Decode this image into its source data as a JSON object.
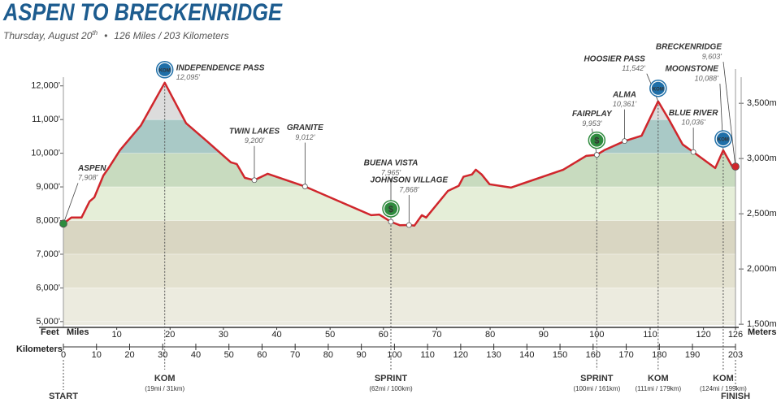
{
  "chart_data": {
    "type": "elevation-profile",
    "title": "ASPEN TO BRECKENRIDGE",
    "subtitle_date": "Thursday, August 20",
    "subtitle_date_suffix": "th",
    "subtitle_distance": "126 Miles / 203 Kilometers",
    "y_label": "Feet",
    "x_label": "Miles",
    "x2_label": "Kilometers",
    "y2_label": "Meters",
    "series": [
      {
        "name": "Elevation",
        "color": "#d0262c",
        "x": [
          0,
          1.5,
          3.4,
          4.9,
          5.8,
          7.5,
          8.4,
          10.6,
          14.5,
          19,
          23,
          27.1,
          31.4,
          32.5,
          34,
          35.8,
          38.3,
          45.3,
          57.7,
          59.2,
          61.4,
          63.1,
          64.8,
          65.8,
          67.2,
          68,
          72.1,
          74.1,
          75,
          76.6,
          77.3,
          78.4,
          79.9,
          83.9,
          93.7,
          98,
          100,
          101.4,
          105.2,
          108.4,
          111.5,
          113.6,
          116.1,
          118.1,
          122.2,
          123.7,
          125.4,
          126
        ],
        "values": [
          7908,
          8090,
          8090,
          8570,
          8690,
          9340,
          9540,
          10090,
          10820,
          12095,
          10890,
          10330,
          9730,
          9680,
          9270,
          9200,
          9390,
          9012,
          8160,
          8180,
          7965,
          7860,
          7868,
          7850,
          8160,
          8090,
          8880,
          9030,
          9300,
          9370,
          9510,
          9370,
          9080,
          8980,
          9510,
          9920,
          9953,
          10090,
          10361,
          10520,
          11542,
          10980,
          10260,
          10036,
          9560,
          10088,
          9600,
          9603
        ]
      }
    ],
    "xlim": [
      0,
      126
    ],
    "xticks": [
      10,
      20,
      30,
      40,
      50,
      60,
      70,
      80,
      90,
      100,
      110,
      120,
      126
    ],
    "x2lim": [
      0,
      203
    ],
    "x2ticks": [
      0,
      10,
      20,
      30,
      40,
      50,
      60,
      70,
      80,
      90,
      100,
      110,
      120,
      130,
      140,
      150,
      160,
      170,
      180,
      190,
      203
    ],
    "ylim": [
      4900,
      12500
    ],
    "yticks": [
      {
        "value": 5000,
        "label": "5,000'"
      },
      {
        "value": 6000,
        "label": "6,000'"
      },
      {
        "value": 7000,
        "label": "7,000'"
      },
      {
        "value": 8000,
        "label": "8,000'"
      },
      {
        "value": 9000,
        "label": "9,000'"
      },
      {
        "value": 10000,
        "label": "10,000'"
      },
      {
        "value": 11000,
        "label": "11,000'"
      },
      {
        "value": 12000,
        "label": "12,000'"
      }
    ],
    "y2lim": [
      1493.5,
      3810
    ],
    "y2ticks": [
      {
        "value": 1500,
        "label": "1,500m"
      },
      {
        "value": 2000,
        "label": "2,000m"
      },
      {
        "value": 2500,
        "label": "2,500m"
      },
      {
        "value": 3000,
        "label": "3,000m"
      },
      {
        "value": 3500,
        "label": "3,500m"
      }
    ],
    "band_colors": [
      "#ebeadf",
      "#ecebdf",
      "#e3e1cf",
      "#d9d6c2",
      "#e5eed8",
      "#c8dbbf",
      "#a9c9c6",
      "#dcdcdc",
      "#ebebeb"
    ],
    "annotations": [
      {
        "text": "ASPEN",
        "elevation": "7,908'",
        "x": 0,
        "y": 7908,
        "color": "#1d5c8f"
      },
      {
        "text": "INDEPENDENCE PASS",
        "elevation": "12,095'",
        "x": 19,
        "y": 12095,
        "color": "#1d5c8f"
      },
      {
        "text": "TWIN LAKES",
        "elevation": "9,200'",
        "x": 35.8,
        "y": 9200,
        "color": "#444444"
      },
      {
        "text": "GRANITE",
        "elevation": "9,012'",
        "x": 45.3,
        "y": 9012,
        "color": "#444444"
      },
      {
        "text": "BUENA VISTA",
        "elevation": "7,965'",
        "x": 61.4,
        "y": 7965,
        "color": "#444444"
      },
      {
        "text": "JOHNSON VILLAGE",
        "elevation": "7,868'",
        "x": 64.8,
        "y": 7868,
        "color": "#444444"
      },
      {
        "text": "FAIRPLAY",
        "elevation": "9,953'",
        "x": 100,
        "y": 9953,
        "color": "#444444"
      },
      {
        "text": "ALMA",
        "elevation": "10,361'",
        "x": 105.2,
        "y": 10361,
        "color": "#444444"
      },
      {
        "text": "HOOSIER PASS",
        "elevation": "11,542'",
        "x": 111.5,
        "y": 11542,
        "color": "#1d5c8f"
      },
      {
        "text": "BLUE RIVER",
        "elevation": "10,036'",
        "x": 118.1,
        "y": 10036,
        "color": "#444444"
      },
      {
        "text": "MOONSTONE",
        "elevation": "10,088'",
        "x": 123.7,
        "y": 10088,
        "color": "#1d5c8f"
      },
      {
        "text": "BRECKENRIDGE",
        "elevation": "9,603'",
        "x": 126,
        "y": 9603,
        "color": "#1d5c8f"
      }
    ],
    "icons": [
      {
        "text": "KOM",
        "x": 19,
        "color": "#1f6fa8"
      },
      {
        "text": "$",
        "x": 61.4,
        "color": "#2e8b3e"
      },
      {
        "text": "$",
        "x": 100,
        "color": "#2e8b3e"
      },
      {
        "text": "KOM",
        "x": 111.5,
        "color": "#1f6fa8"
      },
      {
        "text": "KOM",
        "x": 123.7,
        "color": "#1f6fa8"
      }
    ],
    "markers": [
      {
        "label": "START",
        "x": 0,
        "color": "#2e8b3e"
      },
      {
        "label": "KOM",
        "detail": "(19mi / 31km)",
        "x": 19,
        "color": "#1f6fa8"
      },
      {
        "label": "SPRINT",
        "detail": "(62mi / 100km)",
        "x": 61.4,
        "color": "#2e8b3e"
      },
      {
        "label": "SPRINT",
        "detail": "(100mi / 161km)",
        "x": 100,
        "color": "#2e8b3e"
      },
      {
        "label": "KOM",
        "detail": "(111mi / 179km)",
        "x": 111.5,
        "color": "#1f6fa8"
      },
      {
        "label": "KOM",
        "detail": "(124mi / 199km)",
        "x": 123.7,
        "color": "#1f6fa8"
      },
      {
        "label": "FINISH",
        "x": 126,
        "color": "#d12a2f"
      }
    ]
  }
}
